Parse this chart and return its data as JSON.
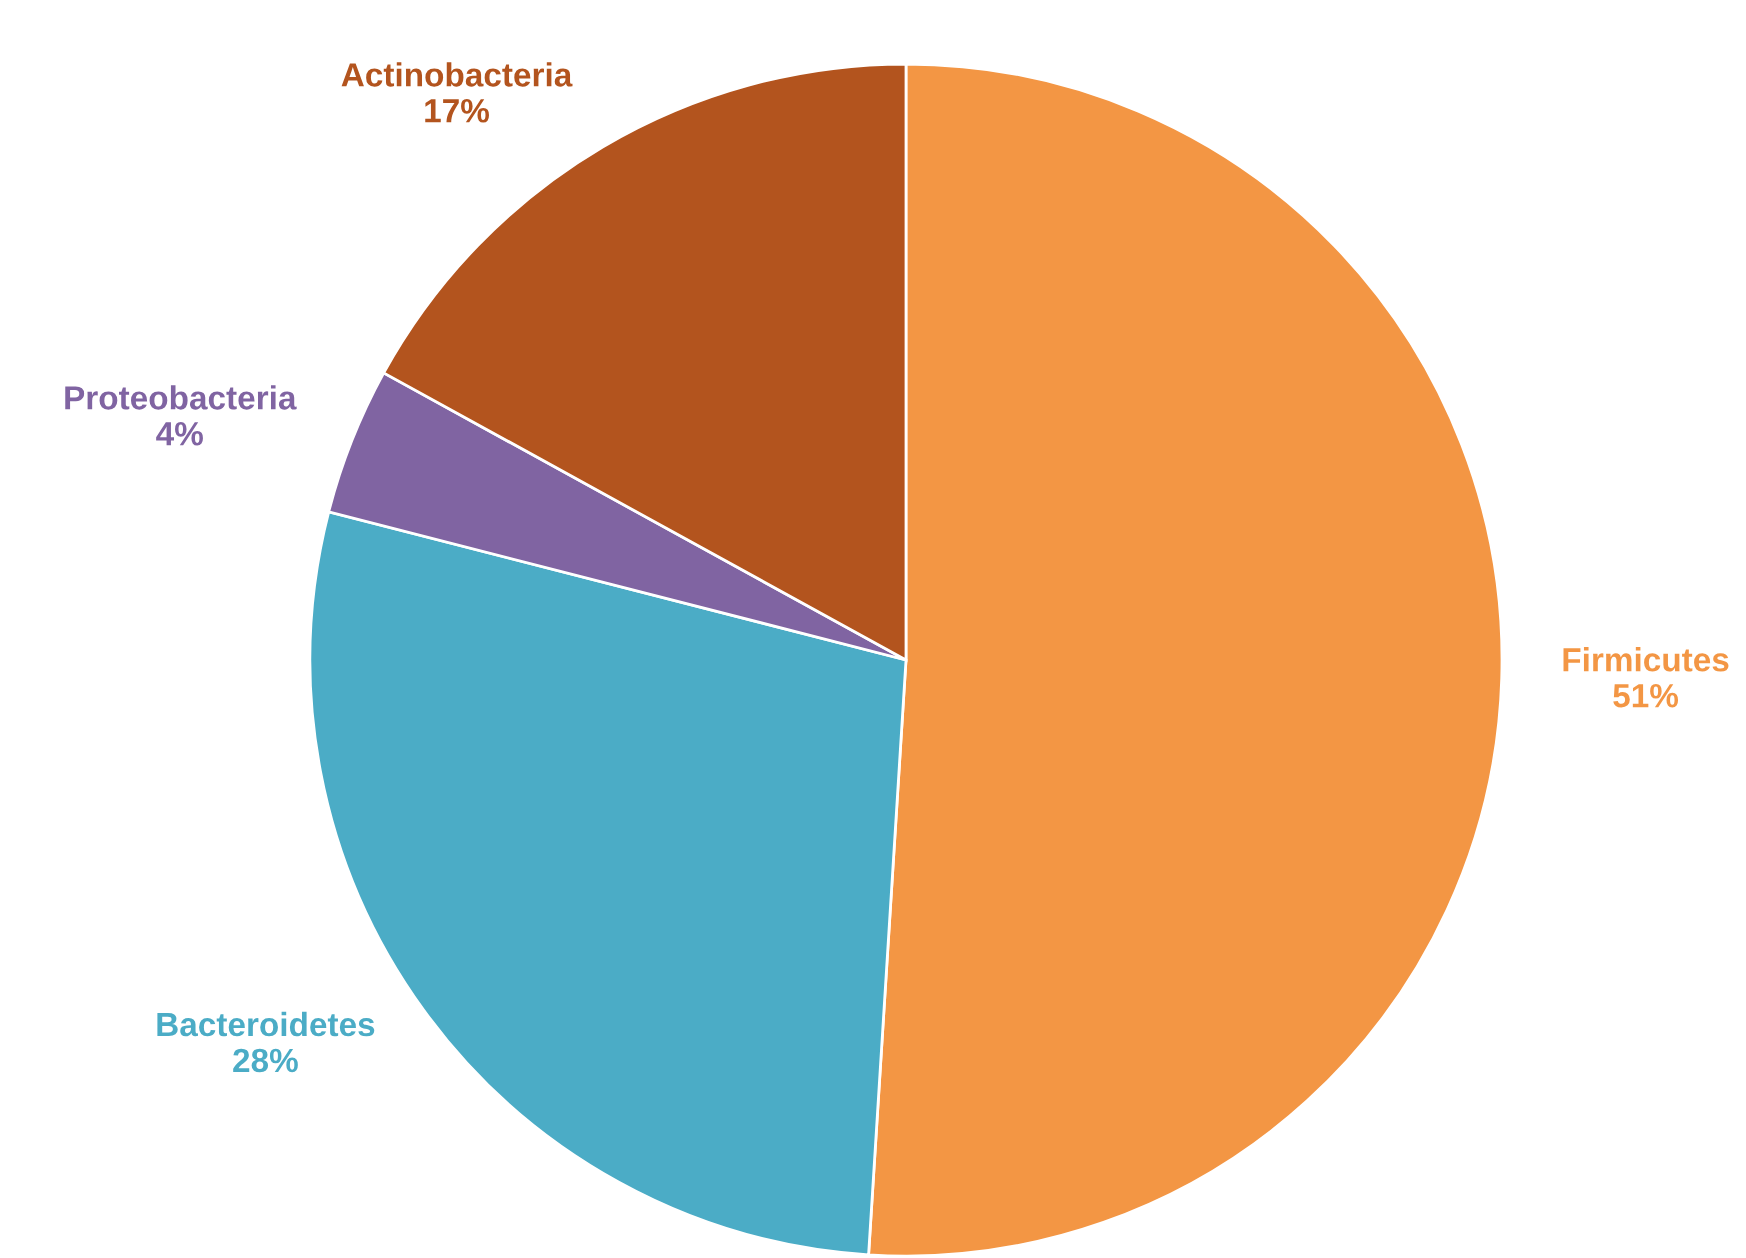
{
  "chart_data": {
    "type": "pie",
    "categories": [
      "Firmicutes",
      "Bacteroidetes",
      "Proteobacteria",
      "Actinobacteria"
    ],
    "values": [
      51,
      28,
      4,
      17
    ],
    "value_labels": [
      "51%",
      "28%",
      "4%",
      "17%"
    ],
    "colors": [
      "#f39644",
      "#4bacc6",
      "#8064a2",
      "#b3541e"
    ]
  }
}
